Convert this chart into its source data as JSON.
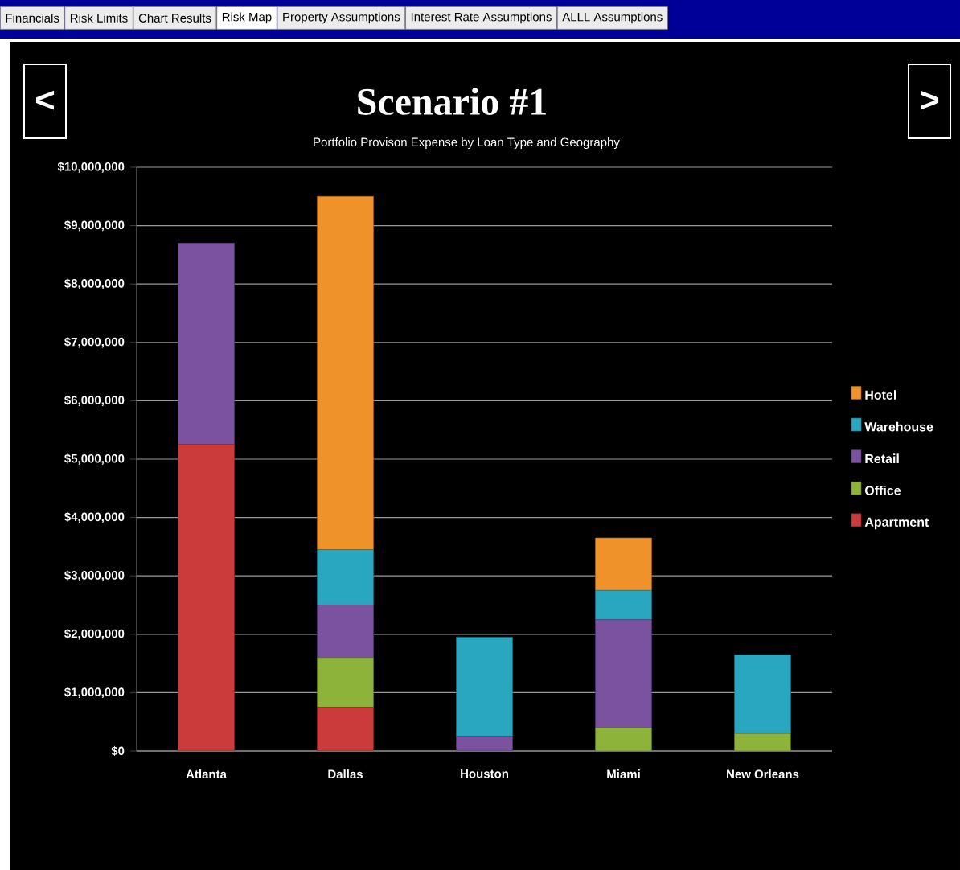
{
  "chart_data": {
    "type": "bar",
    "stacked": true,
    "title": "Scenario #1",
    "subtitle": "Portfolio Provison Expense by Loan Type and Geography",
    "categories": [
      "Atlanta",
      "Dallas",
      "Houston",
      "Miami",
      "New Orleans"
    ],
    "series": [
      {
        "name": "Apartment",
        "color": "#cc3b3b",
        "values": [
          5250000,
          750000,
          0,
          0,
          0
        ]
      },
      {
        "name": "Office",
        "color": "#8db33a",
        "values": [
          0,
          850000,
          0,
          400000,
          300000
        ]
      },
      {
        "name": "Retail",
        "color": "#7a52a0",
        "values": [
          3450000,
          900000,
          250000,
          1850000,
          0
        ]
      },
      {
        "name": "Warehouse",
        "color": "#2aa7c0",
        "values": [
          0,
          950000,
          1700000,
          500000,
          1350000
        ]
      },
      {
        "name": "Hotel",
        "color": "#f0922a",
        "values": [
          0,
          6050000,
          0,
          900000,
          0
        ]
      }
    ],
    "ylim": [
      0,
      10000000
    ],
    "yticks": [
      {
        "value": 0,
        "label": "$0"
      },
      {
        "value": 1000000,
        "label": "$1,000,000"
      },
      {
        "value": 2000000,
        "label": "$2,000,000"
      },
      {
        "value": 3000000,
        "label": "$3,000,000"
      },
      {
        "value": 4000000,
        "label": "$4,000,000"
      },
      {
        "value": 5000000,
        "label": "$5,000,000"
      },
      {
        "value": 6000000,
        "label": "$6,000,000"
      },
      {
        "value": 7000000,
        "label": "$7,000,000"
      },
      {
        "value": 8000000,
        "label": "$8,000,000"
      },
      {
        "value": 9000000,
        "label": "$9,000,000"
      },
      {
        "value": 10000000,
        "label": "$10,000,000"
      }
    ],
    "grid": "y",
    "legend": "right",
    "annotations": [
      "Financials",
      "Risk Limits",
      "Chart Results",
      "Risk Map",
      "Property Assumptions",
      "Interest Rate Assumptions",
      "ALLL Assumptions",
      "<",
      ">"
    ]
  }
}
